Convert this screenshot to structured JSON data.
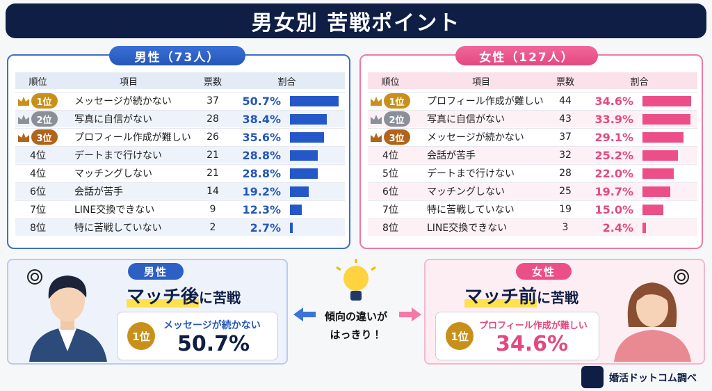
{
  "title": "男女別 苦戦ポイント",
  "men": {
    "heading": "男性（73人）",
    "columns": [
      "順位",
      "項目",
      "票数",
      "割合"
    ],
    "rows": [
      {
        "rank": "1位",
        "item": "メッセージが続かない",
        "votes": 37,
        "share": 50.7,
        "share_label": "50.7%"
      },
      {
        "rank": "2位",
        "item": "写真に自信がない",
        "votes": 28,
        "share": 38.4,
        "share_label": "38.4%"
      },
      {
        "rank": "3位",
        "item": "プロフィール作成が難しい",
        "votes": 26,
        "share": 35.6,
        "share_label": "35.6%"
      },
      {
        "rank": "4位",
        "item": "デートまで行けない",
        "votes": 21,
        "share": 28.8,
        "share_label": "28.8%"
      },
      {
        "rank": "4位",
        "item": "マッチングしない",
        "votes": 21,
        "share": 28.8,
        "share_label": "28.8%"
      },
      {
        "rank": "6位",
        "item": "会話が苦手",
        "votes": 14,
        "share": 19.2,
        "share_label": "19.2%"
      },
      {
        "rank": "7位",
        "item": "LINE交換できない",
        "votes": 9,
        "share": 12.3,
        "share_label": "12.3%"
      },
      {
        "rank": "8位",
        "item": "特に苦戦していない",
        "votes": 2,
        "share": 2.7,
        "share_label": "2.7%"
      }
    ]
  },
  "women": {
    "heading": "女性（127人）",
    "columns": [
      "順位",
      "項目",
      "票数",
      "割合"
    ],
    "rows": [
      {
        "rank": "1位",
        "item": "プロフィール作成が難しい",
        "votes": 44,
        "share": 34.6,
        "share_label": "34.6%"
      },
      {
        "rank": "2位",
        "item": "写真に自信がない",
        "votes": 43,
        "share": 33.9,
        "share_label": "33.9%"
      },
      {
        "rank": "3位",
        "item": "メッセージが続かない",
        "votes": 37,
        "share": 29.1,
        "share_label": "29.1%"
      },
      {
        "rank": "4位",
        "item": "会話が苦手",
        "votes": 32,
        "share": 25.2,
        "share_label": "25.2%"
      },
      {
        "rank": "5位",
        "item": "デートまで行けない",
        "votes": 28,
        "share": 22.0,
        "share_label": "22.0%"
      },
      {
        "rank": "6位",
        "item": "マッチングしない",
        "votes": 25,
        "share": 19.7,
        "share_label": "19.7%"
      },
      {
        "rank": "7位",
        "item": "特に苦戦していない",
        "votes": 19,
        "share": 15.0,
        "share_label": "15.0%"
      },
      {
        "rank": "8位",
        "item": "LINE交換できない",
        "votes": 3,
        "share": 2.4,
        "share_label": "2.4%"
      }
    ]
  },
  "men_summary": {
    "label": "男性",
    "headline_em": "マッチ後",
    "headline_rest": "に苦戦",
    "rank": "1位",
    "item": "メッセージが続かない",
    "share_label": "50.7%"
  },
  "center": {
    "lines": [
      "傾向の違いが",
      "はっきり！"
    ]
  },
  "women_summary": {
    "label": "女性",
    "headline_em": "マッチ前",
    "headline_rest": "に苦戦",
    "rank": "1位",
    "item": "プロフィール作成が難しい",
    "share_label": "34.6%"
  },
  "source": "婚活ドットコム調べ"
}
